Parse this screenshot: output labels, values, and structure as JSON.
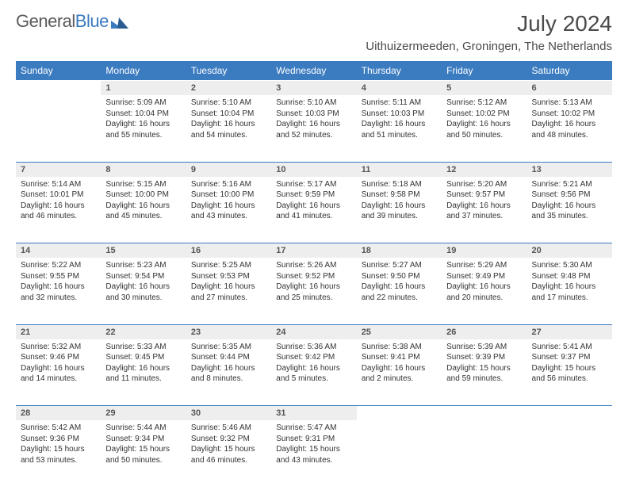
{
  "brand": {
    "part1": "General",
    "part2": "Blue"
  },
  "title": "July 2024",
  "location": "Uithuizermeeden, Groningen, The Netherlands",
  "colors": {
    "accent": "#3b7bbf",
    "header_bg": "#3b7bbf",
    "header_text": "#ffffff",
    "daynum_bg": "#eeeeee",
    "text": "#333333",
    "rule": "#3b7bbf"
  },
  "day_headers": [
    "Sunday",
    "Monday",
    "Tuesday",
    "Wednesday",
    "Thursday",
    "Friday",
    "Saturday"
  ],
  "weeks": [
    [
      null,
      {
        "n": "1",
        "sr": "5:09 AM",
        "ss": "10:04 PM",
        "dl": "16 hours and 55 minutes."
      },
      {
        "n": "2",
        "sr": "5:10 AM",
        "ss": "10:04 PM",
        "dl": "16 hours and 54 minutes."
      },
      {
        "n": "3",
        "sr": "5:10 AM",
        "ss": "10:03 PM",
        "dl": "16 hours and 52 minutes."
      },
      {
        "n": "4",
        "sr": "5:11 AM",
        "ss": "10:03 PM",
        "dl": "16 hours and 51 minutes."
      },
      {
        "n": "5",
        "sr": "5:12 AM",
        "ss": "10:02 PM",
        "dl": "16 hours and 50 minutes."
      },
      {
        "n": "6",
        "sr": "5:13 AM",
        "ss": "10:02 PM",
        "dl": "16 hours and 48 minutes."
      }
    ],
    [
      {
        "n": "7",
        "sr": "5:14 AM",
        "ss": "10:01 PM",
        "dl": "16 hours and 46 minutes."
      },
      {
        "n": "8",
        "sr": "5:15 AM",
        "ss": "10:00 PM",
        "dl": "16 hours and 45 minutes."
      },
      {
        "n": "9",
        "sr": "5:16 AM",
        "ss": "10:00 PM",
        "dl": "16 hours and 43 minutes."
      },
      {
        "n": "10",
        "sr": "5:17 AM",
        "ss": "9:59 PM",
        "dl": "16 hours and 41 minutes."
      },
      {
        "n": "11",
        "sr": "5:18 AM",
        "ss": "9:58 PM",
        "dl": "16 hours and 39 minutes."
      },
      {
        "n": "12",
        "sr": "5:20 AM",
        "ss": "9:57 PM",
        "dl": "16 hours and 37 minutes."
      },
      {
        "n": "13",
        "sr": "5:21 AM",
        "ss": "9:56 PM",
        "dl": "16 hours and 35 minutes."
      }
    ],
    [
      {
        "n": "14",
        "sr": "5:22 AM",
        "ss": "9:55 PM",
        "dl": "16 hours and 32 minutes."
      },
      {
        "n": "15",
        "sr": "5:23 AM",
        "ss": "9:54 PM",
        "dl": "16 hours and 30 minutes."
      },
      {
        "n": "16",
        "sr": "5:25 AM",
        "ss": "9:53 PM",
        "dl": "16 hours and 27 minutes."
      },
      {
        "n": "17",
        "sr": "5:26 AM",
        "ss": "9:52 PM",
        "dl": "16 hours and 25 minutes."
      },
      {
        "n": "18",
        "sr": "5:27 AM",
        "ss": "9:50 PM",
        "dl": "16 hours and 22 minutes."
      },
      {
        "n": "19",
        "sr": "5:29 AM",
        "ss": "9:49 PM",
        "dl": "16 hours and 20 minutes."
      },
      {
        "n": "20",
        "sr": "5:30 AM",
        "ss": "9:48 PM",
        "dl": "16 hours and 17 minutes."
      }
    ],
    [
      {
        "n": "21",
        "sr": "5:32 AM",
        "ss": "9:46 PM",
        "dl": "16 hours and 14 minutes."
      },
      {
        "n": "22",
        "sr": "5:33 AM",
        "ss": "9:45 PM",
        "dl": "16 hours and 11 minutes."
      },
      {
        "n": "23",
        "sr": "5:35 AM",
        "ss": "9:44 PM",
        "dl": "16 hours and 8 minutes."
      },
      {
        "n": "24",
        "sr": "5:36 AM",
        "ss": "9:42 PM",
        "dl": "16 hours and 5 minutes."
      },
      {
        "n": "25",
        "sr": "5:38 AM",
        "ss": "9:41 PM",
        "dl": "16 hours and 2 minutes."
      },
      {
        "n": "26",
        "sr": "5:39 AM",
        "ss": "9:39 PM",
        "dl": "15 hours and 59 minutes."
      },
      {
        "n": "27",
        "sr": "5:41 AM",
        "ss": "9:37 PM",
        "dl": "15 hours and 56 minutes."
      }
    ],
    [
      {
        "n": "28",
        "sr": "5:42 AM",
        "ss": "9:36 PM",
        "dl": "15 hours and 53 minutes."
      },
      {
        "n": "29",
        "sr": "5:44 AM",
        "ss": "9:34 PM",
        "dl": "15 hours and 50 minutes."
      },
      {
        "n": "30",
        "sr": "5:46 AM",
        "ss": "9:32 PM",
        "dl": "15 hours and 46 minutes."
      },
      {
        "n": "31",
        "sr": "5:47 AM",
        "ss": "9:31 PM",
        "dl": "15 hours and 43 minutes."
      },
      null,
      null,
      null
    ]
  ],
  "labels": {
    "sunrise": "Sunrise:",
    "sunset": "Sunset:",
    "daylight": "Daylight:"
  }
}
